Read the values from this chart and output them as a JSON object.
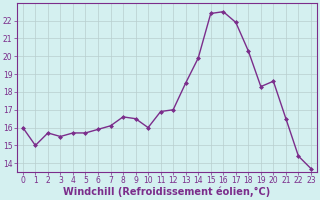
{
  "x": [
    0,
    1,
    2,
    3,
    4,
    5,
    6,
    7,
    8,
    9,
    10,
    11,
    12,
    13,
    14,
    15,
    16,
    17,
    18,
    19,
    20,
    21,
    22,
    23
  ],
  "y": [
    16.0,
    15.0,
    15.7,
    15.5,
    15.7,
    15.7,
    15.9,
    16.1,
    16.6,
    16.5,
    16.0,
    16.9,
    17.0,
    18.5,
    19.9,
    22.4,
    22.5,
    21.9,
    20.3,
    18.3,
    18.6,
    16.5,
    14.4,
    13.7
  ],
  "line_color": "#7b2d8b",
  "marker": "D",
  "marker_size": 2,
  "bg_color": "#d4f0f0",
  "grid_color": "#b8cece",
  "tick_color": "#7b2d8b",
  "xlabel": "Windchill (Refroidissement éolien,°C)",
  "xlabel_fontsize": 7,
  "ylim": [
    13.5,
    23.0
  ],
  "yticks": [
    14,
    15,
    16,
    17,
    18,
    19,
    20,
    21,
    22
  ],
  "xticks": [
    0,
    1,
    2,
    3,
    4,
    5,
    6,
    7,
    8,
    9,
    10,
    11,
    12,
    13,
    14,
    15,
    16,
    17,
    18,
    19,
    20,
    21,
    22,
    23
  ],
  "tick_fontsize": 5.5,
  "linewidth": 1.0
}
